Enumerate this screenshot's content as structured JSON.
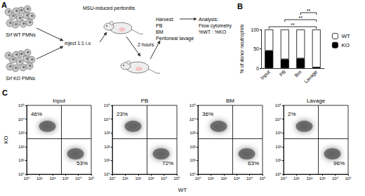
{
  "panel_a": {
    "panel_label": "A",
    "wt_cells": "Srf WT PMNs",
    "ko_cells": "Srf KO PMNs",
    "injection": "inject 1:1 i.v.",
    "model": "MSU-induced peritonitis",
    "time": "2 hours",
    "harvest": [
      "Harvest:",
      "PB",
      "BM",
      "Peritoneal lavage"
    ],
    "analysis": [
      "Analysis:",
      "Flow cytometry",
      "%WT : %KO"
    ]
  },
  "panel_c": {
    "panel_label": "C",
    "x_label": "WT",
    "y_label": "KO"
  },
  "chart_data": [
    {
      "panel_label": "B",
      "type": "bar",
      "stacked": true,
      "grid": false,
      "legend": "upper right",
      "y_label": "% of donor neutrophils",
      "categories": [
        "Input",
        "PB",
        "Bm",
        "Lavage"
      ],
      "ylim": [
        0,
        100
      ],
      "yticks": [
        0,
        50,
        100
      ],
      "series": [
        {
          "name": "KO",
          "color": "#000000",
          "values": [
            45,
            23,
            25,
            2
          ]
        },
        {
          "name": "WT",
          "color": "#ffffff",
          "values": [
            55,
            77,
            75,
            98
          ]
        }
      ],
      "significance": [
        {
          "from": "Input",
          "to": "Lavage",
          "label": "**"
        },
        {
          "from": "PB",
          "to": "Lavage",
          "label": "**"
        },
        {
          "from": "Bm",
          "to": "Lavage",
          "label": "**"
        }
      ]
    },
    {
      "type": "scatter",
      "title": "Input",
      "log": true,
      "xlim": [
        1,
        100000
      ],
      "ylim": [
        1,
        100000
      ],
      "xticks": [
        {
          "value": 1,
          "label": "10⁰"
        },
        {
          "value": 10,
          "label": "10¹"
        },
        {
          "value": 100,
          "label": "10²"
        },
        {
          "value": 1000,
          "label": "10³"
        },
        {
          "value": 10000,
          "label": "10⁴"
        },
        {
          "value": 100000,
          "label": "10⁵"
        }
      ],
      "yticks": [
        {
          "value": 1,
          "label": "10⁰"
        },
        {
          "value": 10,
          "label": "10¹"
        },
        {
          "value": 100,
          "label": "10²"
        },
        {
          "value": 1000,
          "label": "10³"
        },
        {
          "value": 10000,
          "label": "10⁴"
        },
        {
          "value": 100000,
          "label": "10⁵"
        }
      ],
      "gate": [
        500,
        400
      ],
      "clusters": [
        [
          40,
          3000
        ],
        [
          6000,
          30
        ]
      ],
      "values": [
        46,
        53
      ],
      "value_labels": [
        "46%",
        "53%"
      ],
      "color": "#555555"
    },
    {
      "type": "scatter",
      "title": "PB",
      "log": true,
      "xlim": [
        1,
        100000
      ],
      "ylim": [
        1,
        100000
      ],
      "xticks": [
        {
          "value": 1,
          "label": "10⁰"
        },
        {
          "value": 10,
          "label": "10¹"
        },
        {
          "value": 100,
          "label": "10²"
        },
        {
          "value": 1000,
          "label": "10³"
        },
        {
          "value": 10000,
          "label": "10⁴"
        },
        {
          "value": 100000,
          "label": "10⁵"
        }
      ],
      "yticks": [
        {
          "value": 1,
          "label": "10⁰"
        },
        {
          "value": 10,
          "label": "10¹"
        },
        {
          "value": 100,
          "label": "10²"
        },
        {
          "value": 1000,
          "label": "10³"
        },
        {
          "value": 10000,
          "label": "10⁴"
        },
        {
          "value": 100000,
          "label": "10⁵"
        }
      ],
      "gate": [
        500,
        400
      ],
      "clusters": [
        [
          40,
          3000
        ],
        [
          6000,
          30
        ]
      ],
      "values": [
        23,
        72
      ],
      "value_labels": [
        "23%",
        "72%"
      ],
      "color": "#555555"
    },
    {
      "type": "scatter",
      "title": "BM",
      "log": true,
      "xlim": [
        1,
        100000
      ],
      "ylim": [
        1,
        100000
      ],
      "xticks": [
        {
          "value": 1,
          "label": "10⁰"
        },
        {
          "value": 10,
          "label": "10¹"
        },
        {
          "value": 100,
          "label": "10²"
        },
        {
          "value": 1000,
          "label": "10³"
        },
        {
          "value": 10000,
          "label": "10⁴"
        },
        {
          "value": 100000,
          "label": "10⁵"
        }
      ],
      "yticks": [
        {
          "value": 1,
          "label": "10⁰"
        },
        {
          "value": 10,
          "label": "10¹"
        },
        {
          "value": 100,
          "label": "10²"
        },
        {
          "value": 1000,
          "label": "10³"
        },
        {
          "value": 10000,
          "label": "10⁴"
        },
        {
          "value": 100000,
          "label": "10⁵"
        }
      ],
      "gate": [
        500,
        400
      ],
      "clusters": [
        [
          40,
          3000
        ],
        [
          6000,
          30
        ]
      ],
      "values": [
        36,
        63
      ],
      "value_labels": [
        "36%",
        "63%"
      ],
      "color": "#555555"
    },
    {
      "type": "scatter",
      "title": "Lavage",
      "log": true,
      "xlim": [
        1,
        100000
      ],
      "ylim": [
        1,
        100000
      ],
      "xticks": [
        {
          "value": 1,
          "label": "10⁰"
        },
        {
          "value": 10,
          "label": "10¹"
        },
        {
          "value": 100,
          "label": "10²"
        },
        {
          "value": 1000,
          "label": "10³"
        },
        {
          "value": 10000,
          "label": "10⁴"
        },
        {
          "value": 100000,
          "label": "10⁵"
        }
      ],
      "yticks": [
        {
          "value": 1,
          "label": "10⁰"
        },
        {
          "value": 10,
          "label": "10¹"
        },
        {
          "value": 100,
          "label": "10²"
        },
        {
          "value": 1000,
          "label": "10³"
        },
        {
          "value": 10000,
          "label": "10⁴"
        },
        {
          "value": 100000,
          "label": "10⁵"
        }
      ],
      "gate": [
        500,
        400
      ],
      "clusters": [
        [
          40,
          3000
        ],
        [
          6000,
          30
        ]
      ],
      "values": [
        2,
        96
      ],
      "value_labels": [
        "2%",
        "96%"
      ],
      "color": "#555555"
    }
  ]
}
